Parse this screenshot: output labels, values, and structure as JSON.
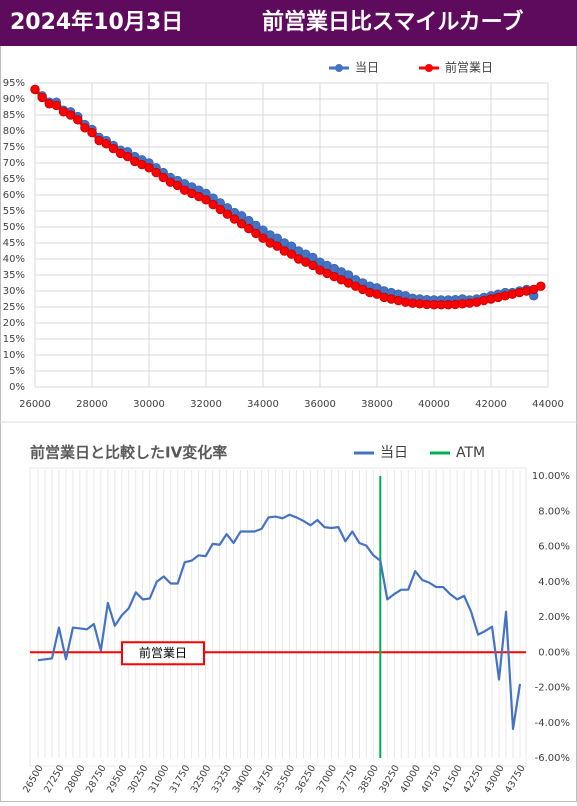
{
  "header": {
    "date": "2024年10月3日",
    "title": "前営業日比スマイルカーブ"
  },
  "chart_data": [
    {
      "type": "line",
      "markers": true,
      "grid": true,
      "legend": "top-right",
      "xlim": [
        26000,
        44000
      ],
      "xticks": [
        26000,
        28000,
        30000,
        32000,
        34000,
        36000,
        38000,
        40000,
        42000,
        44000
      ],
      "ylim": [
        0,
        95
      ],
      "yticks": [
        {
          "value": 0,
          "label": "0%"
        },
        {
          "value": 5,
          "label": "5%"
        },
        {
          "value": 10,
          "label": "10%"
        },
        {
          "value": 15,
          "label": "15%"
        },
        {
          "value": 20,
          "label": "20%"
        },
        {
          "value": 25,
          "label": "25%"
        },
        {
          "value": 30,
          "label": "30%"
        },
        {
          "value": 35,
          "label": "35%"
        },
        {
          "value": 40,
          "label": "40%"
        },
        {
          "value": 45,
          "label": "45%"
        },
        {
          "value": 50,
          "label": "50%"
        },
        {
          "value": 55,
          "label": "55%"
        },
        {
          "value": 60,
          "label": "60%"
        },
        {
          "value": 65,
          "label": "65%"
        },
        {
          "value": 70,
          "label": "70%"
        },
        {
          "value": 75,
          "label": "75%"
        },
        {
          "value": 80,
          "label": "80%"
        },
        {
          "value": 85,
          "label": "85%"
        },
        {
          "value": 90,
          "label": "90%"
        },
        {
          "value": 95,
          "label": "95%"
        }
      ],
      "x": [
        26000,
        26250,
        26500,
        26750,
        27000,
        27250,
        27500,
        27750,
        28000,
        28250,
        28500,
        28750,
        29000,
        29250,
        29500,
        29750,
        30000,
        30250,
        30500,
        30750,
        31000,
        31250,
        31500,
        31750,
        32000,
        32250,
        32500,
        32750,
        33000,
        33250,
        33500,
        33750,
        34000,
        34250,
        34500,
        34750,
        35000,
        35250,
        35500,
        35750,
        36000,
        36250,
        36500,
        36750,
        37000,
        37250,
        37500,
        37750,
        38000,
        38250,
        38500,
        38750,
        39000,
        39250,
        39500,
        39750,
        40000,
        40250,
        40500,
        40750,
        41000,
        41250,
        41500,
        41750,
        42000,
        42250,
        42500,
        42750,
        43000,
        43250,
        43500,
        43750
      ],
      "series": [
        {
          "name": "当日",
          "color": "#4472c4",
          "values": [
            93,
            91,
            89,
            89,
            86.5,
            86,
            84.5,
            82,
            80.5,
            78,
            77,
            75.5,
            74,
            73.5,
            72,
            71,
            70,
            68.5,
            67,
            65.5,
            64.5,
            63.5,
            62.5,
            61.5,
            60.5,
            59,
            57.5,
            56,
            54.5,
            53.5,
            52,
            50.5,
            49,
            47.5,
            46.5,
            45,
            44,
            42.5,
            41.5,
            40.5,
            39,
            38,
            37,
            36,
            35,
            33.5,
            32.5,
            31.5,
            31,
            30,
            29.5,
            29,
            28.5,
            27.7,
            27.5,
            27.3,
            27.2,
            27.2,
            27.2,
            27.3,
            27.5,
            27.2,
            27.5,
            28,
            28.5,
            29,
            29.5,
            29.5,
            30,
            30.5,
            28.5,
            null
          ]
        },
        {
          "name": "前営業日",
          "color": "#ff0000",
          "values": [
            93,
            90.5,
            88.5,
            88,
            86,
            85,
            83.5,
            81,
            79.5,
            77,
            76,
            74.5,
            73,
            72,
            70.5,
            69.5,
            68.5,
            67,
            65.5,
            64,
            63,
            61.5,
            60.5,
            59.5,
            58.5,
            57,
            55.5,
            54,
            52.5,
            51,
            49.5,
            48,
            46.5,
            45,
            44,
            42.5,
            41.5,
            40,
            39,
            38,
            36.5,
            35.5,
            34.5,
            33.5,
            32.5,
            31.5,
            30.5,
            29.5,
            29,
            28,
            27.5,
            27,
            26.5,
            26.2,
            26,
            25.8,
            25.7,
            25.7,
            25.7,
            25.8,
            26,
            26.2,
            26.5,
            27,
            27.5,
            28,
            28.5,
            29,
            29.5,
            30,
            30.5,
            31.5
          ]
        }
      ]
    },
    {
      "type": "line",
      "markers": false,
      "grid": "x",
      "legend": "top-right",
      "title": "前営業日と比較したIV変化率",
      "xlim": [
        26500,
        43750
      ],
      "xticks": [
        26500,
        27250,
        28000,
        28750,
        29500,
        30250,
        31000,
        31750,
        32500,
        33250,
        34000,
        34750,
        35500,
        36250,
        37000,
        37750,
        38500,
        39250,
        40000,
        40750,
        41500,
        42250,
        43000,
        43750
      ],
      "y2lim": [
        -6,
        10
      ],
      "y2ticks": [
        {
          "value": 10,
          "label": "10.00%"
        },
        {
          "value": 8,
          "label": "8.00%"
        },
        {
          "value": 6,
          "label": "6.00%"
        },
        {
          "value": 4,
          "label": "4.00%"
        },
        {
          "value": 2,
          "label": "2.00%"
        },
        {
          "value": 0,
          "label": "0.00%"
        },
        {
          "value": -2,
          "label": "-2.00%"
        },
        {
          "value": -4,
          "label": "-4.00%"
        },
        {
          "value": -6,
          "label": "-6.00%"
        }
      ],
      "x": [
        26500,
        26750,
        27000,
        27250,
        27500,
        27750,
        28000,
        28250,
        28500,
        28750,
        29000,
        29250,
        29500,
        29750,
        30000,
        30250,
        30500,
        30750,
        31000,
        31250,
        31500,
        31750,
        32000,
        32250,
        32500,
        32750,
        33000,
        33250,
        33500,
        33750,
        34000,
        34250,
        34500,
        34750,
        35000,
        35250,
        35500,
        35750,
        36000,
        36250,
        36500,
        36750,
        37000,
        37250,
        37500,
        37750,
        38000,
        38250,
        38500,
        38750,
        39000,
        39250,
        39500,
        39750,
        40000,
        40250,
        40500,
        40750,
        41000,
        41250,
        41500,
        41750,
        42000,
        42250,
        42500,
        42750,
        43000,
        43250,
        43500,
        43750
      ],
      "series": [
        {
          "name": "当日",
          "color": "#4472c4",
          "axis": "y2",
          "values": [
            -0.45,
            -0.4,
            -0.35,
            1.4,
            -0.4,
            1.4,
            1.35,
            1.3,
            1.6,
            0.1,
            2.8,
            1.5,
            2.1,
            2.5,
            3.4,
            3.0,
            3.05,
            4.0,
            4.3,
            3.9,
            3.9,
            5.1,
            5.2,
            5.5,
            5.45,
            6.15,
            6.1,
            6.7,
            6.2,
            6.85,
            6.85,
            6.85,
            7.0,
            7.65,
            7.7,
            7.6,
            7.8,
            7.65,
            7.45,
            7.2,
            7.5,
            7.1,
            7.05,
            7.1,
            6.3,
            6.85,
            6.2,
            6.05,
            5.5,
            5.2,
            3.0,
            3.3,
            3.55,
            3.55,
            4.6,
            4.1,
            3.95,
            3.7,
            3.7,
            3.3,
            3.0,
            3.2,
            2.3,
            1.0,
            1.2,
            1.45,
            -1.55,
            2.3,
            -4.35,
            -1.8
          ]
        }
      ],
      "atm": {
        "name": "ATM",
        "color": "#00b050",
        "x": 38750
      },
      "baseline": {
        "label": "前営業日",
        "color": "#ff0000"
      }
    }
  ]
}
